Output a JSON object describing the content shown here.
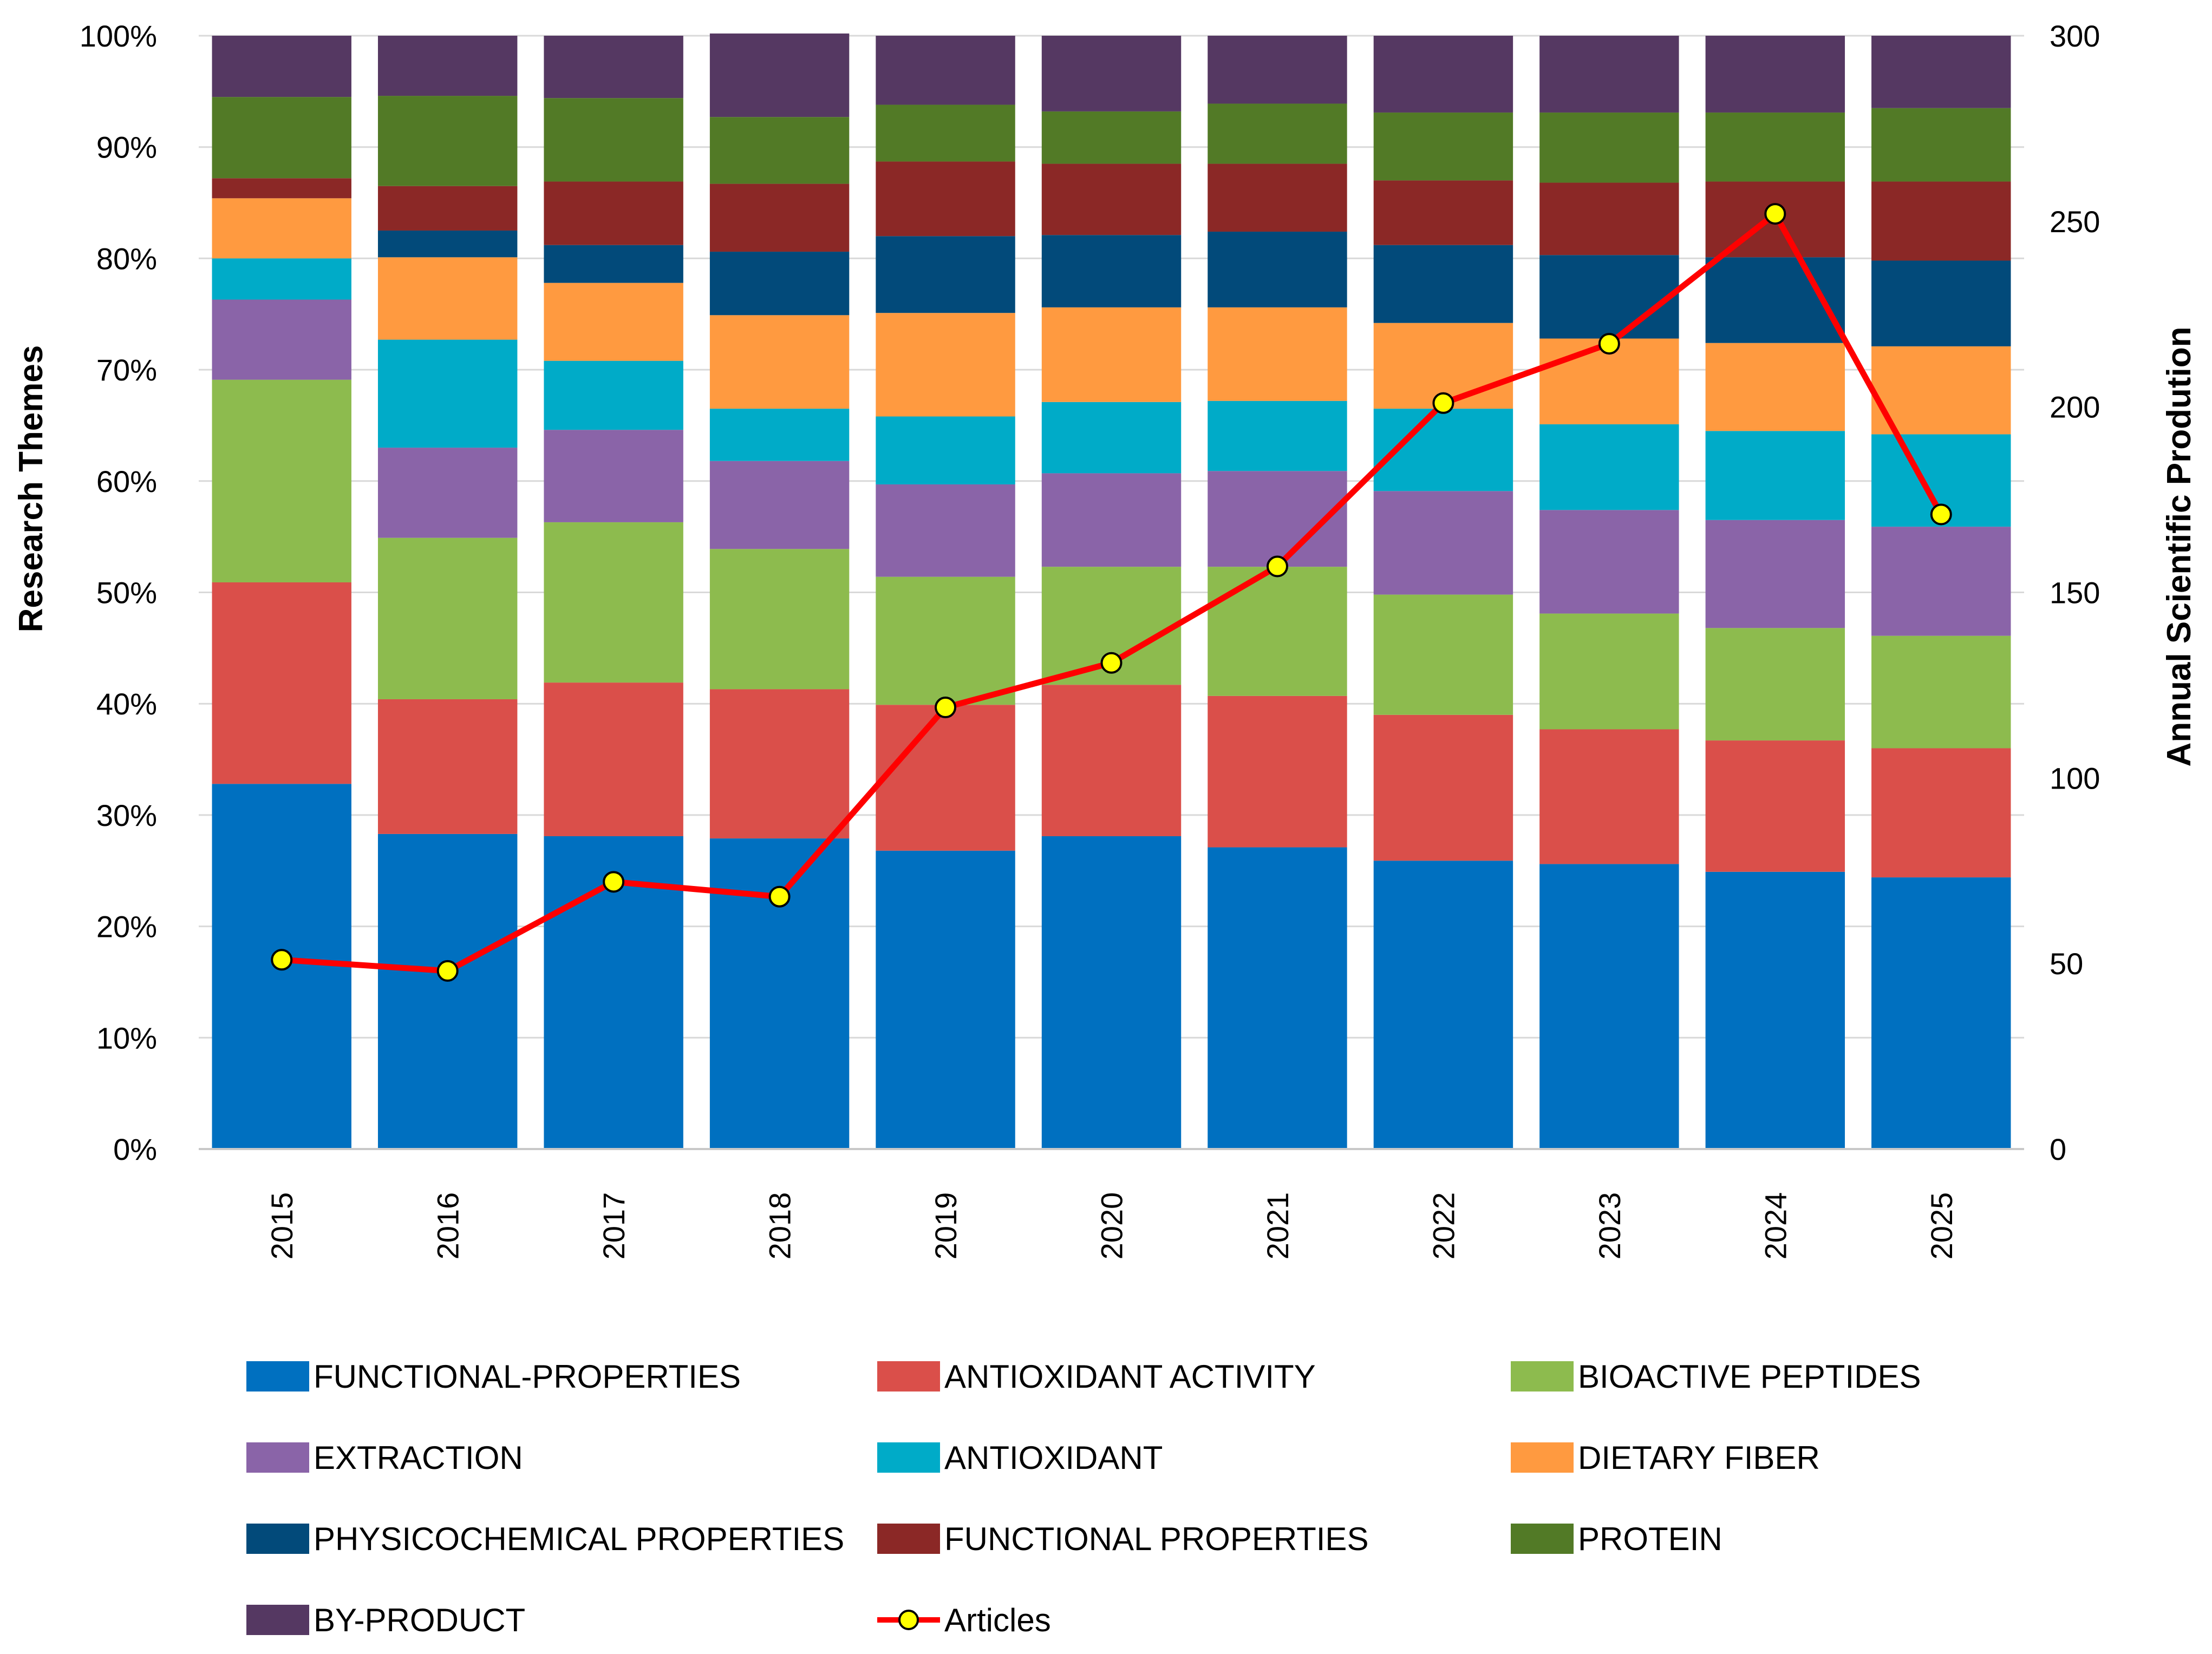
{
  "chart_data": {
    "type": "bar",
    "stacked": true,
    "normalized": true,
    "categories": [
      "2015",
      "2016",
      "2017",
      "2018",
      "2019",
      "2020",
      "2021",
      "2022",
      "2023",
      "2024",
      "2025"
    ],
    "ylabel": "Research Themes",
    "y2label": "Annual Scientific Prodution",
    "ylim": [
      0,
      100
    ],
    "y2lim": [
      0,
      300
    ],
    "yticks": [
      "0%",
      "10%",
      "20%",
      "30%",
      "40%",
      "50%",
      "60%",
      "70%",
      "80%",
      "90%",
      "100%"
    ],
    "y2ticks": [
      "0",
      "50",
      "100",
      "150",
      "200",
      "250",
      "300"
    ],
    "grid": true,
    "legend_position": "bottom",
    "series": [
      {
        "name": "FUNCTIONAL-PROPERTIES",
        "color": "#0070C0",
        "values": [
          32.8,
          28.3,
          28.1,
          27.9,
          26.8,
          28.1,
          27.1,
          25.9,
          25.6,
          24.9,
          24.4
        ]
      },
      {
        "name": "ANTIOXIDANT ACTIVITY",
        "color": "#DA4F4A",
        "values": [
          18.1,
          12.1,
          13.8,
          13.4,
          13.1,
          13.6,
          13.6,
          13.1,
          12.1,
          11.8,
          11.6
        ]
      },
      {
        "name": "BIOACTIVE PEPTIDES",
        "color": "#8DBB4E",
        "values": [
          18.2,
          14.5,
          14.4,
          12.6,
          11.5,
          10.6,
          11.6,
          10.8,
          10.4,
          10.1,
          10.1
        ]
      },
      {
        "name": "EXTRACTION",
        "color": "#8A64A8",
        "values": [
          7.2,
          8.1,
          8.3,
          7.9,
          8.3,
          8.4,
          8.6,
          9.3,
          9.3,
          9.7,
          9.8
        ]
      },
      {
        "name": "ANTIOXIDANT",
        "color": "#00ABC8",
        "values": [
          3.7,
          9.7,
          6.2,
          4.7,
          6.1,
          6.4,
          6.3,
          7.4,
          7.7,
          8.0,
          8.3
        ]
      },
      {
        "name": "DIETARY FIBER",
        "color": "#FF9A40",
        "values": [
          5.4,
          7.4,
          7.0,
          8.4,
          9.3,
          8.5,
          8.4,
          7.7,
          7.7,
          7.9,
          7.9
        ]
      },
      {
        "name": "PHYSICOCHEMICAL PROPERTIES",
        "color": "#024A7A",
        "values": [
          0.0,
          2.4,
          3.4,
          5.7,
          6.9,
          6.5,
          6.8,
          7.0,
          7.5,
          7.7,
          7.7
        ]
      },
      {
        "name": "FUNCTIONAL PROPERTIES",
        "color": "#8B2826",
        "values": [
          1.8,
          4.0,
          5.7,
          6.1,
          6.7,
          6.4,
          6.1,
          5.8,
          6.5,
          6.8,
          7.1
        ]
      },
      {
        "name": "PROTEIN",
        "color": "#527A26",
        "values": [
          7.3,
          8.1,
          7.5,
          6.0,
          5.1,
          4.7,
          5.4,
          6.1,
          6.3,
          6.2,
          6.6
        ]
      },
      {
        "name": "BY-PRODUCT",
        "color": "#553862",
        "values": [
          5.5,
          5.4,
          5.6,
          7.5,
          6.2,
          6.8,
          6.1,
          6.9,
          6.9,
          6.9,
          6.5
        ]
      }
    ],
    "line_series": {
      "name": "Articles",
      "color": "#FF0000",
      "marker_fill": "#FFFF00",
      "axis": "secondary",
      "values": [
        51,
        48,
        72,
        68,
        119,
        131,
        157,
        201,
        217,
        252,
        171
      ]
    }
  }
}
